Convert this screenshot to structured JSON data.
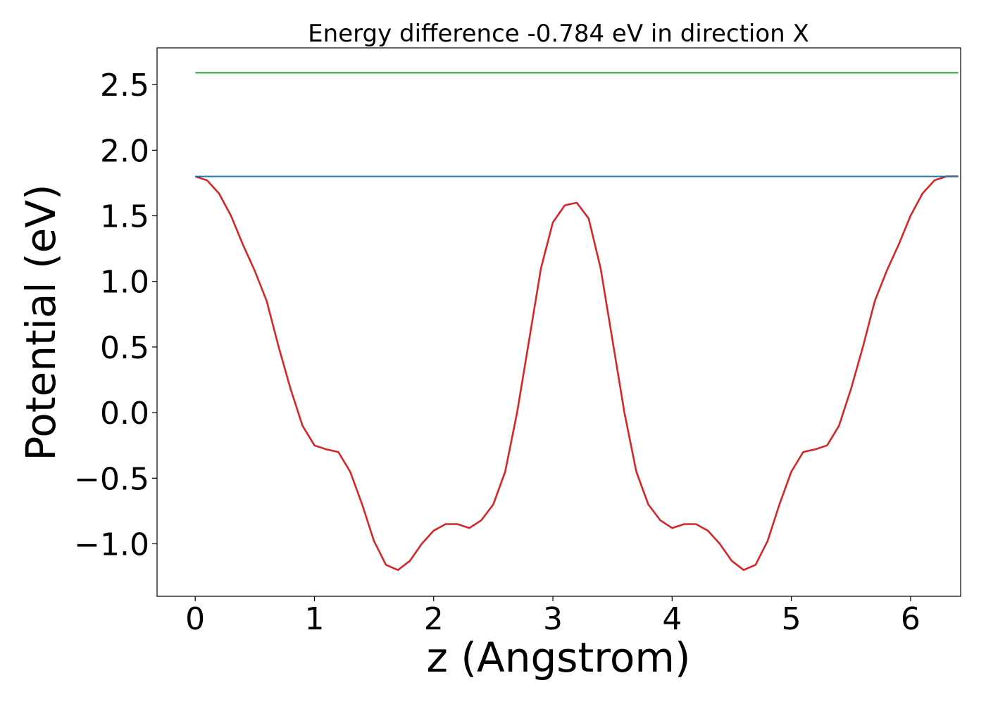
{
  "chart_data": {
    "type": "line",
    "title": "Energy difference -0.784 eV in direction X",
    "xlabel": "z (Angstrom)",
    "ylabel": "Potential (eV)",
    "xlim": [
      -0.32,
      6.42
    ],
    "ylim": [
      -1.4,
      2.78
    ],
    "xticks": [
      0,
      1,
      2,
      3,
      4,
      5,
      6
    ],
    "xtick_labels": [
      "0",
      "1",
      "2",
      "3",
      "4",
      "5",
      "6"
    ],
    "yticks": [
      -1.0,
      -0.5,
      0.0,
      0.5,
      1.0,
      1.5,
      2.0,
      2.5
    ],
    "ytick_labels": [
      "−1.0",
      "−0.5",
      "0.0",
      "0.5",
      "1.0",
      "1.5",
      "2.0",
      "2.5"
    ],
    "grid": false,
    "series": [
      {
        "color": "#d62728",
        "x": [
          0,
          0.1,
          0.2,
          0.3,
          0.4,
          0.5,
          0.6,
          0.7,
          0.8,
          0.9,
          1.0,
          1.1,
          1.2,
          1.3,
          1.4,
          1.5,
          1.6,
          1.7,
          1.8,
          1.9,
          2.0,
          2.1,
          2.2,
          2.3,
          2.4,
          2.5,
          2.6,
          2.7,
          2.8,
          2.9,
          3.0,
          3.1,
          3.2,
          3.3,
          3.4,
          3.5,
          3.6,
          3.7,
          3.8,
          3.9,
          4.0,
          4.1,
          4.2,
          4.3,
          4.4,
          4.5,
          4.6,
          4.7,
          4.8,
          4.9,
          5.0,
          5.1,
          5.2,
          5.3,
          5.4,
          5.5,
          5.6,
          5.7,
          5.8,
          5.9,
          6.0,
          6.1,
          6.2,
          6.3,
          6.4
        ],
        "y": [
          1.8,
          1.77,
          1.67,
          1.5,
          1.28,
          1.08,
          0.85,
          0.5,
          0.18,
          -0.1,
          -0.25,
          -0.28,
          -0.3,
          -0.45,
          -0.7,
          -0.98,
          -1.16,
          -1.2,
          -1.13,
          -1.0,
          -0.9,
          -0.85,
          -0.85,
          -0.88,
          -0.82,
          -0.7,
          -0.45,
          0.0,
          0.55,
          1.1,
          1.45,
          1.58,
          1.6,
          1.48,
          1.1,
          0.55,
          0.0,
          -0.45,
          -0.7,
          -0.82,
          -0.88,
          -0.85,
          -0.85,
          -0.9,
          -1.0,
          -1.13,
          -1.2,
          -1.16,
          -0.98,
          -0.7,
          -0.45,
          -0.3,
          -0.28,
          -0.25,
          -0.1,
          0.18,
          0.5,
          0.85,
          1.08,
          1.28,
          1.5,
          1.67,
          1.77,
          1.8,
          1.8
        ]
      },
      {
        "color": "#1f77b4",
        "x": [
          0,
          6.4
        ],
        "y": [
          1.8,
          1.8
        ]
      },
      {
        "color": "#2ca02c",
        "x": [
          0,
          6.4
        ],
        "y": [
          2.59,
          2.59
        ]
      }
    ]
  }
}
